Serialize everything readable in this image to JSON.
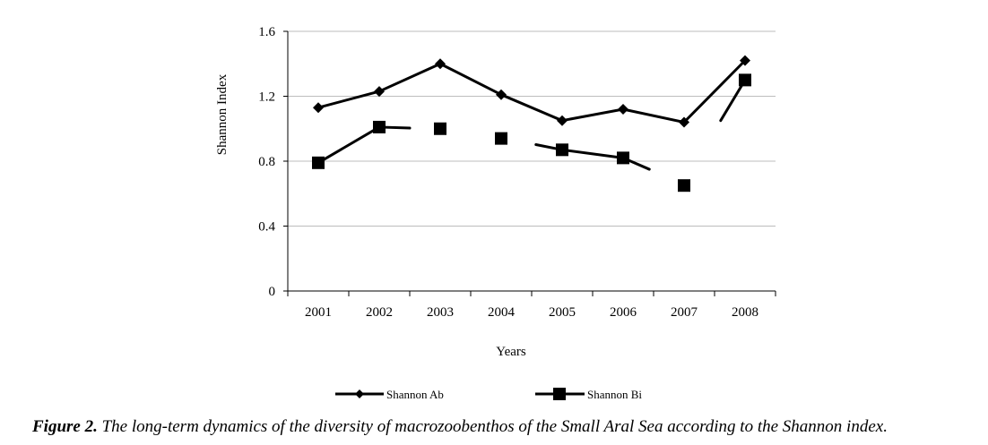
{
  "chart_data": {
    "type": "line",
    "xlabel": "Years",
    "ylabel": "Shannon Index",
    "ylim": [
      0,
      1.6
    ],
    "yticks": [
      "0",
      "0.4",
      "0.8",
      "1.2",
      "1.6"
    ],
    "categories": [
      "2001",
      "2002",
      "2003",
      "2004",
      "2005",
      "2006",
      "2007",
      "2008"
    ],
    "grid": true,
    "legend_position": "bottom",
    "series": [
      {
        "name": "Shannon Ab",
        "marker": "diamond",
        "color": "#000000",
        "values": [
          1.13,
          1.23,
          1.4,
          1.21,
          1.05,
          1.12,
          1.04,
          1.42
        ]
      },
      {
        "name": "Shannon Bi",
        "marker": "square",
        "color": "#000000",
        "values": [
          0.79,
          1.01,
          1.0,
          0.94,
          0.87,
          0.82,
          0.65,
          1.3
        ]
      }
    ]
  },
  "caption": {
    "label": "Figure 2.",
    "text": " The long-term dynamics of the diversity of macrozoobenthos of the Small Aral Sea according to the Shannon index."
  }
}
